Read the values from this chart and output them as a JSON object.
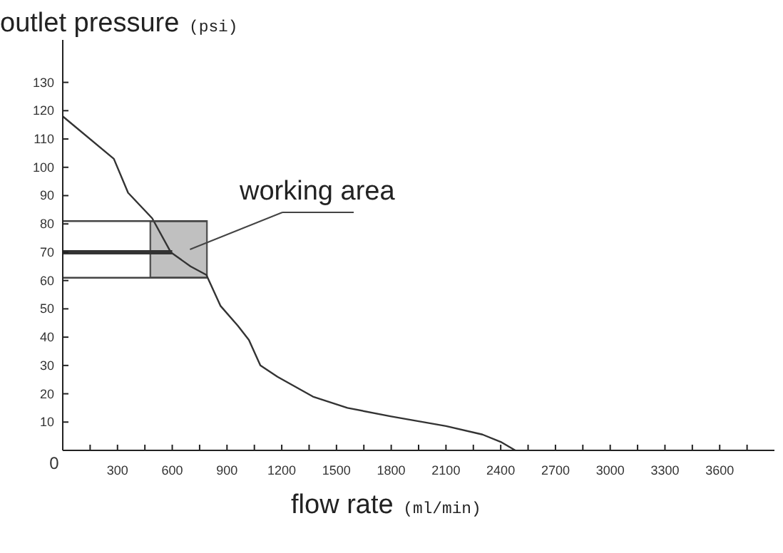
{
  "chart_data": {
    "type": "line",
    "ylabel": "outlet pressure (psi)",
    "xlabel": "flow rate (ml/min)",
    "xlim": [
      0,
      3900
    ],
    "ylim": [
      0,
      145
    ],
    "xticks": [
      {
        "value": 0,
        "label": "0"
      },
      {
        "value": 150,
        "label": null
      },
      300,
      {
        "value": 450,
        "label": null
      },
      600,
      {
        "value": 750,
        "label": null
      },
      900,
      {
        "value": 1050,
        "label": null
      },
      1200,
      {
        "value": 1350,
        "label": null
      },
      1500,
      {
        "value": 1650,
        "label": null
      },
      1800,
      {
        "value": 1950,
        "label": null
      },
      2100,
      {
        "value": 2250,
        "label": null
      },
      2400,
      {
        "value": 2550,
        "label": null
      },
      2700,
      {
        "value": 2850,
        "label": null
      },
      3000,
      {
        "value": 3150,
        "label": null
      },
      3300,
      {
        "value": 3450,
        "label": null
      },
      3600,
      {
        "value": 3750,
        "label": null
      }
    ],
    "yticks": [
      10,
      20,
      30,
      40,
      50,
      60,
      70,
      80,
      90,
      100,
      110,
      120,
      130
    ],
    "series": [
      {
        "color": "#333333",
        "x": [
          0,
          280,
          358,
          490,
          592,
          700,
          787,
          865,
          960,
          1020,
          1083,
          1177,
          1371,
          1560,
          1800,
          2100,
          2300,
          2400,
          2480
        ],
        "values": [
          118,
          103,
          91,
          82,
          70,
          65,
          62,
          51,
          44,
          39,
          30,
          26,
          19,
          15,
          12,
          8.6,
          5.6,
          3,
          0
        ]
      },
      {
        "type": "area",
        "color": "#c0c0c0",
        "x": [
          480,
          480,
          790,
          790,
          480
        ],
        "values": [
          61,
          81,
          81,
          61,
          61
        ]
      },
      {
        "color": "#444444",
        "x": [
          0,
          790
        ],
        "values": [
          81,
          81
        ]
      },
      {
        "color": "#444444",
        "x": [
          0,
          790
        ],
        "values": [
          61,
          61
        ]
      },
      {
        "color": "#333333",
        "x": [
          0,
          600
        ],
        "values": [
          70,
          70
        ]
      }
    ],
    "annotations": [
      "working area"
    ]
  }
}
